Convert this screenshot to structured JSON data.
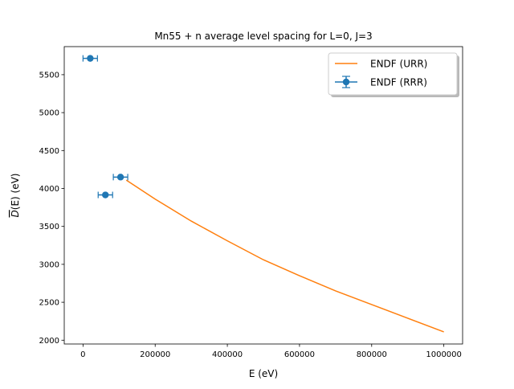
{
  "chart_data": {
    "type": "line",
    "title": "Mn55 + n average level spacing for L=0, J=3",
    "xlabel": "E (eV)",
    "ylabel": "D(E) (eV)",
    "xlim": [
      -52000,
      1052000
    ],
    "ylim": [
      1950,
      5870
    ],
    "xticks": [
      0,
      200000,
      400000,
      600000,
      800000,
      1000000
    ],
    "yticks": [
      2000,
      2500,
      3000,
      3500,
      4000,
      4500,
      5000,
      5500
    ],
    "grid": false,
    "legend_position": "top-right",
    "series": [
      {
        "name": "ENDF (URR)",
        "kind": "line",
        "color": "#ff7f0e",
        "x": [
          120000,
          200000,
          300000,
          400000,
          500000,
          600000,
          700000,
          800000,
          900000,
          1000000
        ],
        "y": [
          4110,
          3860,
          3570,
          3310,
          3060,
          2850,
          2650,
          2470,
          2290,
          2110
        ]
      },
      {
        "name": "ENDF (RRR)",
        "kind": "errorbar",
        "color": "#1f77b4",
        "x": [
          20000,
          62000,
          104000
        ],
        "y": [
          5715,
          3915,
          4150
        ],
        "xerr": [
          20000,
          20000,
          20000
        ]
      }
    ]
  }
}
